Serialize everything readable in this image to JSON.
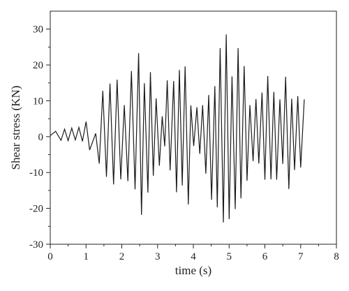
{
  "chart_data": {
    "type": "line",
    "title": "",
    "xlabel": "time (s)",
    "ylabel": "Shear stress (KN)",
    "xlim": [
      0,
      8
    ],
    "ylim": [
      -30,
      35
    ],
    "x_ticks": [
      0,
      1,
      2,
      3,
      4,
      5,
      6,
      7,
      8
    ],
    "y_ticks": [
      -30,
      -20,
      -10,
      0,
      10,
      20,
      30
    ],
    "grid": false,
    "series": [
      {
        "color": "#1a1a1a",
        "x": [
          0.0,
          0.15,
          0.3,
          0.4,
          0.5,
          0.6,
          0.7,
          0.8,
          0.9,
          1.0,
          1.1,
          1.27,
          1.37,
          1.47,
          1.57,
          1.67,
          1.77,
          1.87,
          1.97,
          2.07,
          2.17,
          2.27,
          2.37,
          2.47,
          2.55,
          2.63,
          2.73,
          2.8,
          2.88,
          2.96,
          3.05,
          3.13,
          3.2,
          3.27,
          3.35,
          3.45,
          3.53,
          3.61,
          3.69,
          3.77,
          3.86,
          3.93,
          4.01,
          4.1,
          4.18,
          4.26,
          4.35,
          4.43,
          4.51,
          4.6,
          4.67,
          4.75,
          4.84,
          4.92,
          5.0,
          5.08,
          5.17,
          5.25,
          5.33,
          5.42,
          5.5,
          5.58,
          5.67,
          5.75,
          5.83,
          5.92,
          6.0,
          6.08,
          6.17,
          6.25,
          6.33,
          6.42,
          6.5,
          6.58,
          6.67,
          6.75,
          6.83,
          6.92,
          7.0,
          7.1
        ],
        "y": [
          0.3,
          1.5,
          -1.0,
          2.1,
          -1.1,
          2.4,
          -0.9,
          2.6,
          -1.3,
          4.2,
          -3.7,
          0.9,
          -7.5,
          12.8,
          -11.2,
          14.8,
          -13.3,
          15.9,
          -11.9,
          8.8,
          -12.4,
          18.3,
          -14.7,
          23.3,
          -21.8,
          14.9,
          -15.6,
          18.0,
          -10.9,
          10.7,
          -8.1,
          5.7,
          -2.7,
          15.7,
          -9.4,
          15.5,
          -15.5,
          18.6,
          -13.6,
          19.6,
          -18.9,
          8.7,
          -2.6,
          8.2,
          -4.8,
          8.8,
          -10.3,
          11.6,
          -17.6,
          14.1,
          -19.7,
          24.7,
          -23.9,
          28.5,
          -23.0,
          16.8,
          -20.2,
          24.7,
          -17.2,
          19.7,
          -12.3,
          8.8,
          -6.8,
          10.5,
          -7.5,
          12.3,
          -12.0,
          16.9,
          -11.9,
          12.5,
          -12.0,
          10.4,
          -7.6,
          16.7,
          -14.6,
          10.6,
          -9.3,
          11.3,
          -8.6,
          10.4
        ]
      }
    ]
  }
}
